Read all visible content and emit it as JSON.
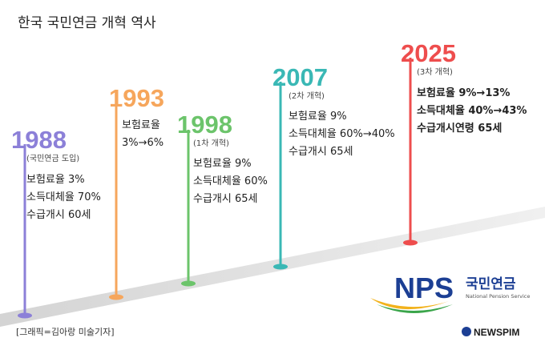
{
  "header": {
    "title": "한국 국민연금 개혁 역사"
  },
  "milestones": [
    {
      "year": "1988",
      "note": "(국민연금 도입)",
      "lines": [
        "보험료율 3%",
        "소득대체율 70%",
        "수급개시 60세"
      ]
    },
    {
      "year": "1993",
      "lines": [
        "보험료율",
        "3%→6%"
      ]
    },
    {
      "year": "1998",
      "note": "(1차 개혁)",
      "lines": [
        "보험료율 9%",
        "소득대체율 60%",
        "수급개시 65세"
      ]
    },
    {
      "year": "2007",
      "note": "(2차 개혁)",
      "lines": [
        "보험료율 9%",
        "소득대체율 60%→40%",
        "수급개시 65세"
      ]
    },
    {
      "year": "2025",
      "note": "(3차 개혁)",
      "lines": [
        "보험료율 9%→13%",
        "소득대체율 40%→43%",
        "수급개시연령 65세"
      ]
    }
  ],
  "logo": {
    "mark": "NPS",
    "name": "국민연금",
    "english": "National Pension Service"
  },
  "footer": {
    "credit": "[그래픽=김아랑 미술기자]",
    "source": "NEWSPIM"
  }
}
